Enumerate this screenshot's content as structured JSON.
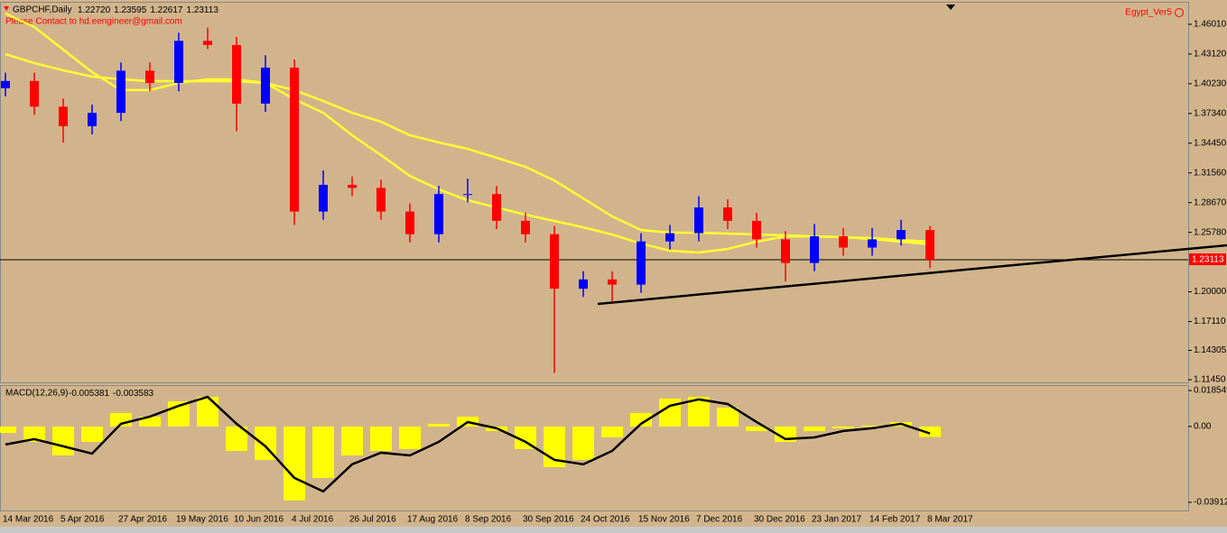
{
  "chart_data": [
    {
      "type": "candlestick",
      "title": "GBPCHF,Daily",
      "ohlc_labels": [
        "1.22720",
        "1.23595",
        "1.22617",
        "1.23113"
      ],
      "subtitle": "Please Contact to hd.eengineer@gmail.com",
      "indicator_label": "Egypt_Ver5",
      "categories": [
        "14 Mar 2016",
        null,
        "5 Apr 2016",
        null,
        "27 Apr 2016",
        null,
        "19 May 2016",
        null,
        "10 Jun 2016",
        null,
        "4 Jul 2016",
        null,
        "26 Jul 2016",
        null,
        "17 Aug 2016",
        null,
        "8 Sep 2016",
        null,
        "30 Sep 2016",
        null,
        "24 Oct 2016",
        null,
        "15 Nov 2016",
        null,
        "7 Dec 2016",
        null,
        "30 Dec 2016",
        null,
        "23 Jan 2017",
        null,
        "14 Feb 2017",
        null,
        "8 Mar 2017"
      ],
      "open": [
        1.398,
        1.405,
        1.38,
        1.361,
        1.374,
        1.415,
        1.403,
        1.444,
        1.44,
        1.383,
        1.418,
        1.278,
        1.304,
        1.301,
        1.278,
        1.256,
        1.295,
        1.295,
        1.269,
        1.256,
        1.203,
        1.212,
        1.207,
        1.249,
        1.257,
        1.282,
        1.269,
        1.251,
        1.228,
        1.254,
        1.243,
        1.251,
        1.26
      ],
      "high": [
        1.413,
        1.413,
        1.388,
        1.382,
        1.423,
        1.423,
        1.452,
        1.457,
        1.448,
        1.43,
        1.426,
        1.318,
        1.312,
        1.309,
        1.286,
        1.303,
        1.31,
        1.303,
        1.277,
        1.264,
        1.22,
        1.22,
        1.257,
        1.265,
        1.293,
        1.29,
        1.277,
        1.259,
        1.266,
        1.262,
        1.262,
        1.27,
        1.264
      ],
      "low": [
        1.39,
        1.372,
        1.345,
        1.353,
        1.366,
        1.395,
        1.395,
        1.436,
        1.356,
        1.375,
        1.265,
        1.27,
        1.293,
        1.27,
        1.248,
        1.248,
        1.287,
        1.261,
        1.248,
        1.121,
        1.195,
        1.19,
        1.199,
        1.241,
        1.249,
        1.261,
        1.243,
        1.21,
        1.22,
        1.235,
        1.235,
        1.245,
        1.223
      ],
      "close": [
        1.405,
        1.38,
        1.361,
        1.374,
        1.415,
        1.403,
        1.444,
        1.44,
        1.383,
        1.418,
        1.278,
        1.304,
        1.301,
        1.278,
        1.256,
        1.295,
        1.295,
        1.269,
        1.256,
        1.203,
        1.212,
        1.207,
        1.249,
        1.257,
        1.282,
        1.269,
        1.251,
        1.228,
        1.254,
        1.243,
        1.251,
        1.26,
        1.23113
      ],
      "up_color": "#0000ff",
      "down_color": "#ff0000",
      "moving_averages": [
        {
          "color": "#ffff33",
          "values": [
            1.4706,
            1.4575,
            1.4355,
            1.4136,
            1.3961,
            1.3961,
            1.4031,
            1.4066,
            1.4066,
            1.4031,
            1.3873,
            1.3741,
            1.3522,
            1.3329,
            1.3127,
            1.2996,
            1.289,
            1.282,
            1.275,
            1.2689,
            1.2627,
            1.2557,
            1.2469,
            1.2399,
            1.2382,
            1.2417,
            1.2487,
            1.2539,
            1.2539,
            1.2531,
            1.2513,
            1.2487,
            1.2461
          ]
        },
        {
          "color": "#ffff33",
          "values": [
            1.4312,
            1.4224,
            1.4154,
            1.4092,
            1.4066,
            1.4048,
            1.4048,
            1.4048,
            1.4048,
            1.4031,
            1.3961,
            1.3855,
            1.3741,
            1.3654,
            1.3522,
            1.3452,
            1.339,
            1.3303,
            1.3215,
            1.3083,
            1.2908,
            1.2733,
            1.2601,
            1.2575,
            1.2575,
            1.2566,
            1.2557,
            1.2548,
            1.2539,
            1.2531,
            1.2522,
            1.2504,
            1.2487
          ]
        }
      ],
      "current_price": 1.23113,
      "trendline": {
        "x": [
          20.5,
          42.28
        ],
        "y": [
          1.1882,
          1.2452
        ]
      },
      "ylim": [
        1.1119,
        1.4811
      ],
      "yticks": [
        {
          "value": 1.4601,
          "label": "1.46010"
        },
        {
          "value": 1.4312,
          "label": "1.43120"
        },
        {
          "value": 1.4023,
          "label": "1.40230"
        },
        {
          "value": 1.3734,
          "label": "1.37340"
        },
        {
          "value": 1.3445,
          "label": "1.34450"
        },
        {
          "value": 1.3156,
          "label": "1.31560"
        },
        {
          "value": 1.2867,
          "label": "1.28670"
        },
        {
          "value": 1.2578,
          "label": "1.25780"
        },
        {
          "value": 1.2,
          "label": "1.20000"
        },
        {
          "value": 1.1711,
          "label": "1.17110"
        },
        1.14305,
        {
          "value": 1.1145,
          "label": "1.11450"
        }
      ]
    },
    {
      "type": "macd",
      "title": "MACD(12,26,9)",
      "title_values": [
        -0.005381,
        -0.003583
      ],
      "values": [
        -0.0033,
        -0.0079,
        -0.0149,
        -0.0079,
        0.007,
        0.0051,
        0.013,
        0.0153,
        -0.0126,
        -0.0172,
        -0.0381,
        -0.0265,
        -0.0149,
        -0.0126,
        -0.0116,
        0.0014,
        0.0051,
        -0.0023,
        -0.0116,
        -0.0209,
        -0.0172,
        -0.0056,
        0.007,
        0.0144,
        0.0153,
        0.0098,
        -0.0023,
        -0.0079,
        -0.0023,
        -0.0009,
        0.0005,
        0.0023,
        -0.005381
      ],
      "color": "#ffff00",
      "signal": [
        -0.0093,
        -0.0065,
        -0.0102,
        -0.014,
        0.0014,
        0.0051,
        0.0107,
        0.0153,
        0.0014,
        -0.0102,
        -0.0265,
        -0.0335,
        -0.0195,
        -0.0135,
        -0.0149,
        -0.0079,
        0.0023,
        -0.0009,
        -0.0079,
        -0.0172,
        -0.0195,
        -0.0126,
        0.0014,
        0.0107,
        0.014,
        0.0116,
        0.0023,
        -0.0065,
        -0.0056,
        -0.0023,
        -0.0009,
        0.0014,
        -0.003583
      ],
      "signal_color": "#000000",
      "ylim": [
        -0.0433,
        0.0209
      ],
      "yticks": [
        0.018549,
        {
          "value": 0,
          "label": "0.00"
        },
        -0.03912
      ]
    }
  ]
}
